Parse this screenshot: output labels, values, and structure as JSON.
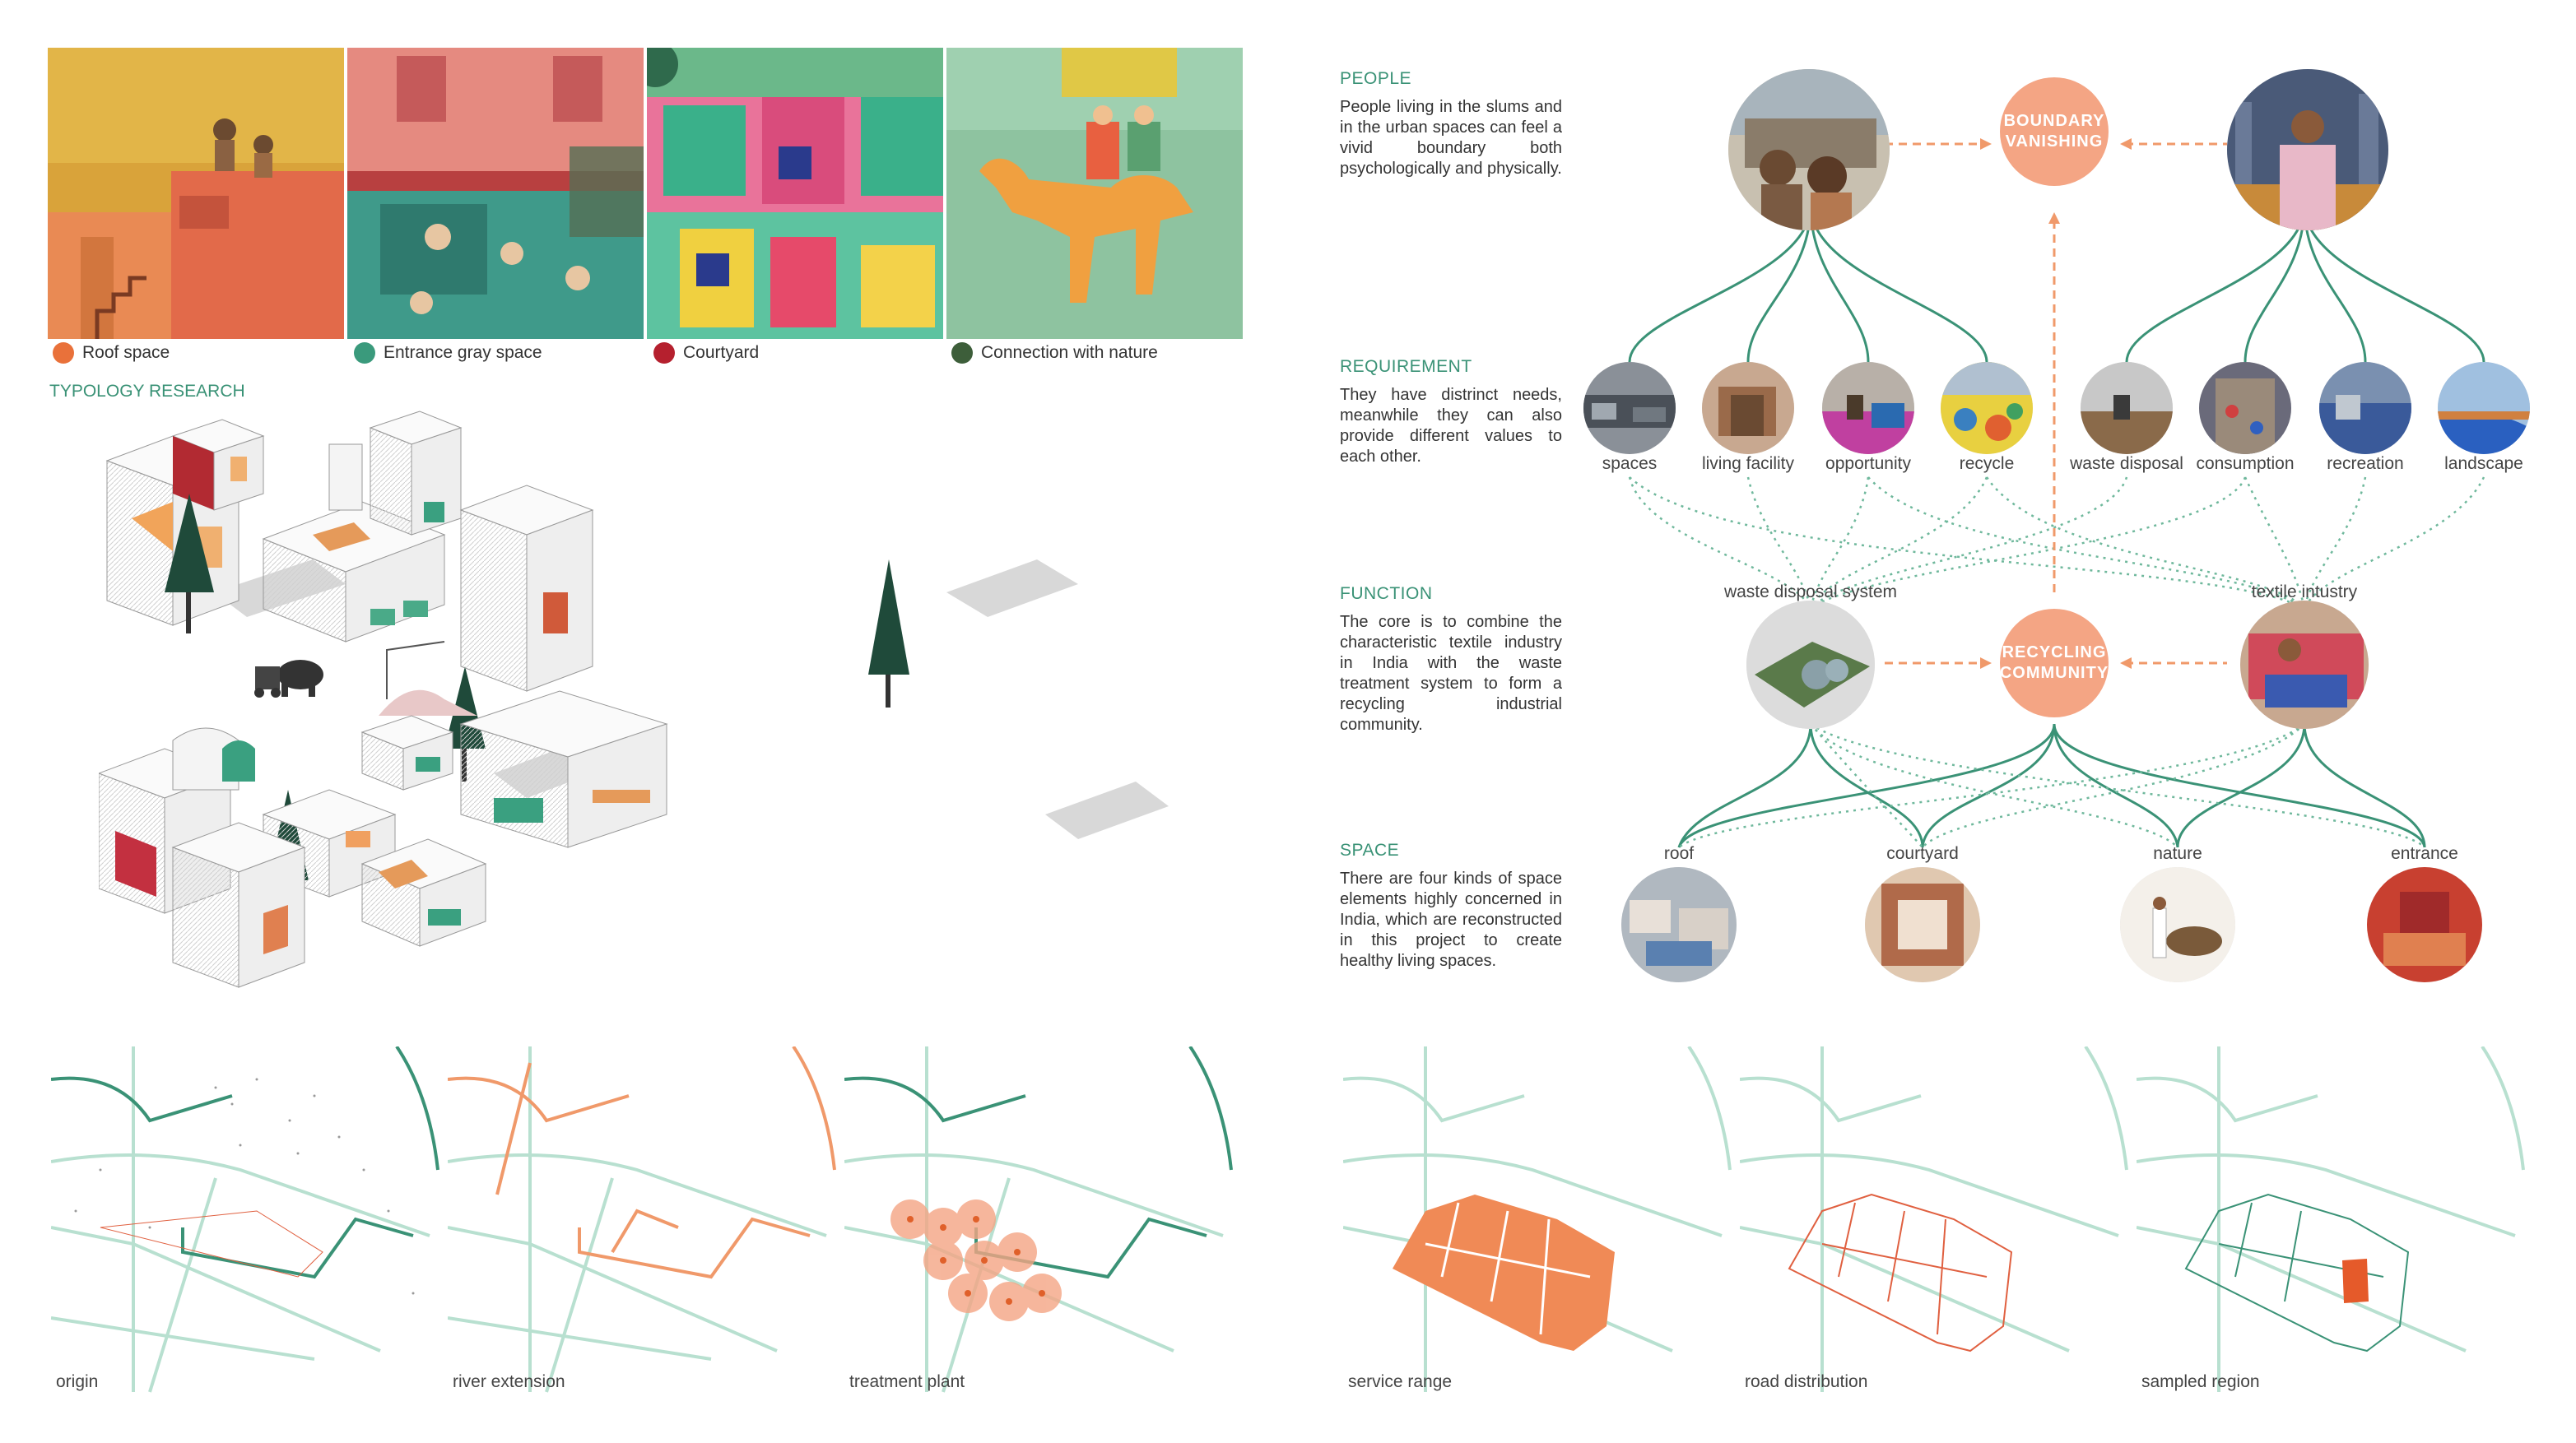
{
  "paintings": [
    {
      "id": "roof",
      "legend": "Roof space",
      "dot_color": "#e9713a"
    },
    {
      "id": "entrance",
      "legend": "Entrance gray space",
      "dot_color": "#3a9a7c"
    },
    {
      "id": "courtyard",
      "legend": "Courtyard",
      "dot_color": "#b5202e"
    },
    {
      "id": "nature",
      "legend": "Connection with nature",
      "dot_color": "#3d5e3a"
    }
  ],
  "typology": {
    "title": "TYPOLOGY RESEARCH"
  },
  "sections": {
    "people": {
      "title": "PEOPLE",
      "body": "People living in the slums and in the urban spaces can feel a vivid boundary both psychologically and physically."
    },
    "requirement": {
      "title": "REQUIREMENT",
      "body": "They have distrinct needs, meanwhile they can also provide different values to each other."
    },
    "function": {
      "title": "FUNCTION",
      "body": "The core is to combine the characteristic textile industry in India with the waste treatment system to form a recycling industrial community."
    },
    "space": {
      "title": "SPACE",
      "body": "There are four kinds of space elements highly concerned in India, which are reconstructed in this project to create healthy living spaces."
    }
  },
  "diagram": {
    "boundary_line1": "BOUNDARY",
    "boundary_line2": "VANISHING",
    "recycling_line1": "RECYCLING",
    "recycling_line2": "COMMUNITY",
    "needs": [
      "spaces",
      "living facility",
      "opportunity",
      "recycle",
      "waste disposal",
      "consumption",
      "recreation",
      "landscape"
    ],
    "systems": [
      "waste disposal system",
      "textile intustry"
    ],
    "spaces": [
      "roof",
      "courtyard",
      "nature",
      "entrance"
    ],
    "accent_color": "#f4a584",
    "line_color": "#3a9276"
  },
  "maps": [
    "origin",
    "river extension",
    "treatment plant",
    "service range",
    "road distribution",
    "sampled region"
  ]
}
